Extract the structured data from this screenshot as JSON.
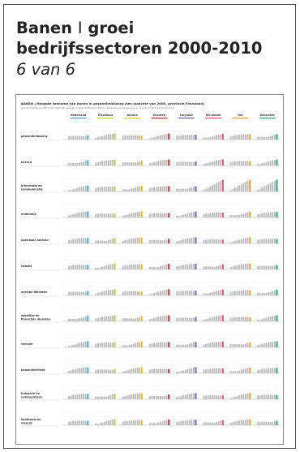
{
  "page": {
    "title_a": "Banen",
    "title_sep": "I",
    "title_b": "groei",
    "title_line2": "bedrijfssectoren 2000-2010",
    "subtitle": "6 van 6"
  },
  "figure": {
    "heading": "BANEN  |  Hoogste toename van banen in gezondheidszorg (ten opzichte van 2000, provincie Flevoland)",
    "caption": "groei ten opzichte van 2000 (index, 2000=100)  |  gemeten in banen (fulltime en parttime)  |  gemarkeerd op hoogste groei van de sectoren voor Provincie Flevoland",
    "regions": [
      {
        "name": "Nederland",
        "color": "#3aa3d4"
      },
      {
        "name": "Flevoland",
        "color": "#b7cf2c"
      },
      {
        "name": "Almere",
        "color": "#e8c51a"
      },
      {
        "name": "Dronten",
        "color": "#c0282d"
      },
      {
        "name": "Lelystad",
        "color": "#6b5fa8"
      },
      {
        "name": "NO-polder",
        "color": "#e94d6b"
      },
      {
        "name": "Urk",
        "color": "#f29a1e"
      },
      {
        "name": "Zeewolde",
        "color": "#2a9a8a"
      }
    ],
    "sectors": [
      {
        "label": "gezondheidszorg"
      },
      {
        "label": "horeca"
      },
      {
        "label": "informatie en communicatie"
      },
      {
        "label": "onderwijs"
      },
      {
        "label": "openbaar bestuur"
      },
      {
        "label": "handel"
      },
      {
        "label": "overige diensten"
      },
      {
        "label": "zakelijke en financiële diensten"
      },
      {
        "label": "vervoer"
      },
      {
        "label": "bouwnijverheid"
      },
      {
        "label": "industrie en nutsbedrijven"
      },
      {
        "label": "landbouw en visserij"
      }
    ],
    "colors": {
      "neutral_bar": "#bdbdbd",
      "axis": "#9a9a9a",
      "text": "#333333",
      "border": "#8a8a8a"
    }
  }
}
